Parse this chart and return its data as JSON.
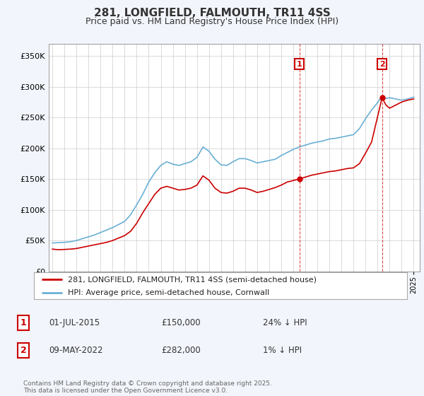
{
  "title": "281, LONGFIELD, FALMOUTH, TR11 4SS",
  "subtitle": "Price paid vs. HM Land Registry's House Price Index (HPI)",
  "legend_line1": "281, LONGFIELD, FALMOUTH, TR11 4SS (semi-detached house)",
  "legend_line2": "HPI: Average price, semi-detached house, Cornwall",
  "annotation1_date": "01-JUL-2015",
  "annotation1_price": "£150,000",
  "annotation1_hpi": "24% ↓ HPI",
  "annotation1_year": 2015.5,
  "annotation1_value": 150000,
  "annotation2_date": "09-MAY-2022",
  "annotation2_price": "£282,000",
  "annotation2_hpi": "1% ↓ HPI",
  "annotation2_year": 2022.37,
  "annotation2_value": 282000,
  "footer": "Contains HM Land Registry data © Crown copyright and database right 2025.\nThis data is licensed under the Open Government Licence v3.0.",
  "hpi_color": "#6ab0d4",
  "price_color": "#cc0000",
  "background_color": "#f2f5fb",
  "plot_bg_color": "#ffffff",
  "ylim": [
    0,
    370000
  ],
  "xlim_start": 1994.7,
  "xlim_end": 2025.5,
  "hpi_data": [
    [
      1995.0,
      46000
    ],
    [
      1995.5,
      46500
    ],
    [
      1996.0,
      47000
    ],
    [
      1996.5,
      48000
    ],
    [
      1997.0,
      50000
    ],
    [
      1997.5,
      53000
    ],
    [
      1998.0,
      56000
    ],
    [
      1998.5,
      59000
    ],
    [
      1999.0,
      63000
    ],
    [
      1999.5,
      67000
    ],
    [
      2000.0,
      71000
    ],
    [
      2000.5,
      76000
    ],
    [
      2001.0,
      81000
    ],
    [
      2001.5,
      92000
    ],
    [
      2002.0,
      108000
    ],
    [
      2002.5,
      125000
    ],
    [
      2003.0,
      145000
    ],
    [
      2003.5,
      160000
    ],
    [
      2004.0,
      172000
    ],
    [
      2004.5,
      178000
    ],
    [
      2005.0,
      174000
    ],
    [
      2005.5,
      172000
    ],
    [
      2006.0,
      175000
    ],
    [
      2006.5,
      178000
    ],
    [
      2007.0,
      185000
    ],
    [
      2007.5,
      202000
    ],
    [
      2008.0,
      195000
    ],
    [
      2008.5,
      182000
    ],
    [
      2009.0,
      173000
    ],
    [
      2009.5,
      172000
    ],
    [
      2010.0,
      178000
    ],
    [
      2010.5,
      183000
    ],
    [
      2011.0,
      183000
    ],
    [
      2011.5,
      180000
    ],
    [
      2012.0,
      176000
    ],
    [
      2012.5,
      178000
    ],
    [
      2013.0,
      180000
    ],
    [
      2013.5,
      182000
    ],
    [
      2014.0,
      188000
    ],
    [
      2014.5,
      193000
    ],
    [
      2015.0,
      198000
    ],
    [
      2015.5,
      202000
    ],
    [
      2016.0,
      205000
    ],
    [
      2016.5,
      208000
    ],
    [
      2017.0,
      210000
    ],
    [
      2017.5,
      212000
    ],
    [
      2018.0,
      215000
    ],
    [
      2018.5,
      216000
    ],
    [
      2019.0,
      218000
    ],
    [
      2019.5,
      220000
    ],
    [
      2020.0,
      222000
    ],
    [
      2020.5,
      232000
    ],
    [
      2021.0,
      248000
    ],
    [
      2021.5,
      262000
    ],
    [
      2022.0,
      274000
    ],
    [
      2022.37,
      285000
    ],
    [
      2022.5,
      280000
    ],
    [
      2023.0,
      282000
    ],
    [
      2023.5,
      280000
    ],
    [
      2024.0,
      278000
    ],
    [
      2024.5,
      280000
    ],
    [
      2025.0,
      283000
    ]
  ],
  "price_data": [
    [
      1995.0,
      36000
    ],
    [
      1995.5,
      35000
    ],
    [
      1996.0,
      35500
    ],
    [
      1996.5,
      36000
    ],
    [
      1997.0,
      37000
    ],
    [
      1997.5,
      39000
    ],
    [
      1998.0,
      41000
    ],
    [
      1998.5,
      43000
    ],
    [
      1999.0,
      45000
    ],
    [
      1999.5,
      47000
    ],
    [
      2000.0,
      50000
    ],
    [
      2000.5,
      54000
    ],
    [
      2001.0,
      58000
    ],
    [
      2001.5,
      65000
    ],
    [
      2002.0,
      78000
    ],
    [
      2002.5,
      95000
    ],
    [
      2003.0,
      110000
    ],
    [
      2003.5,
      125000
    ],
    [
      2004.0,
      135000
    ],
    [
      2004.5,
      138000
    ],
    [
      2005.0,
      135000
    ],
    [
      2005.5,
      132000
    ],
    [
      2006.0,
      133000
    ],
    [
      2006.5,
      135000
    ],
    [
      2007.0,
      140000
    ],
    [
      2007.5,
      155000
    ],
    [
      2008.0,
      148000
    ],
    [
      2008.5,
      135000
    ],
    [
      2009.0,
      128000
    ],
    [
      2009.5,
      127000
    ],
    [
      2010.0,
      130000
    ],
    [
      2010.5,
      135000
    ],
    [
      2011.0,
      135000
    ],
    [
      2011.5,
      132000
    ],
    [
      2012.0,
      128000
    ],
    [
      2012.5,
      130000
    ],
    [
      2013.0,
      133000
    ],
    [
      2013.5,
      136000
    ],
    [
      2014.0,
      140000
    ],
    [
      2014.5,
      145000
    ],
    [
      2015.5,
      150000
    ],
    [
      2016.0,
      153000
    ],
    [
      2016.5,
      156000
    ],
    [
      2017.0,
      158000
    ],
    [
      2017.5,
      160000
    ],
    [
      2018.0,
      162000
    ],
    [
      2018.5,
      163000
    ],
    [
      2019.0,
      165000
    ],
    [
      2019.5,
      167000
    ],
    [
      2020.0,
      168000
    ],
    [
      2020.5,
      175000
    ],
    [
      2021.0,
      192000
    ],
    [
      2021.5,
      210000
    ],
    [
      2022.37,
      282000
    ],
    [
      2022.7,
      270000
    ],
    [
      2023.0,
      265000
    ],
    [
      2023.5,
      270000
    ],
    [
      2024.0,
      275000
    ],
    [
      2024.5,
      278000
    ],
    [
      2025.0,
      280000
    ]
  ]
}
